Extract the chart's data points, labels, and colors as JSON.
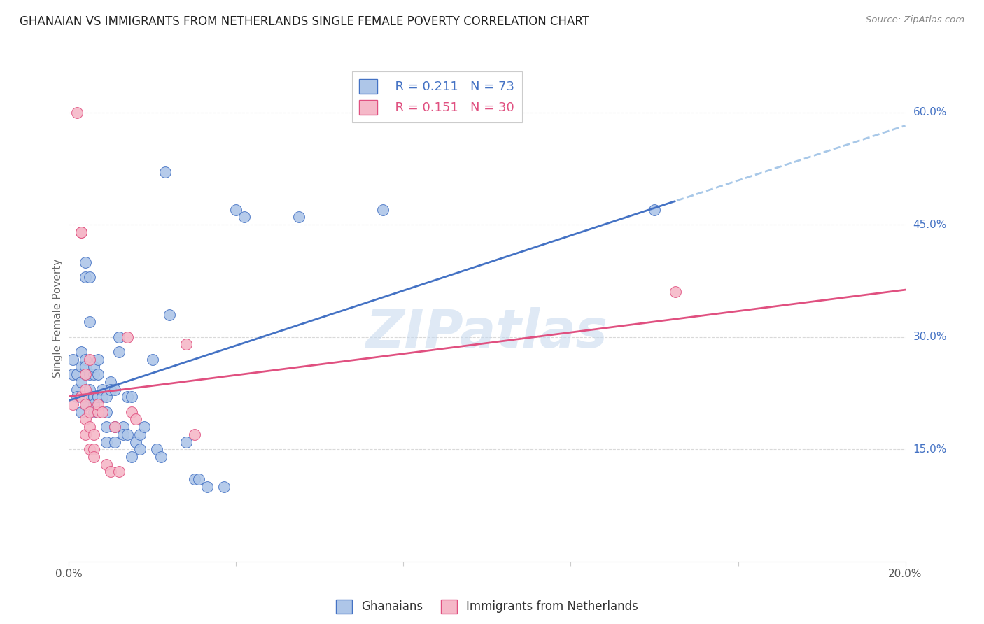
{
  "title": "GHANAIAN VS IMMIGRANTS FROM NETHERLANDS SINGLE FEMALE POVERTY CORRELATION CHART",
  "source": "Source: ZipAtlas.com",
  "ylabel": "Single Female Poverty",
  "ghanaian_R": 0.211,
  "ghanaian_N": 73,
  "netherlands_R": 0.151,
  "netherlands_N": 30,
  "ghanaian_color": "#aec6e8",
  "netherlands_color": "#f5b8c8",
  "ghanaian_line_color": "#4472c4",
  "netherlands_line_color": "#e05080",
  "trend_dash_color": "#a8c8e8",
  "watermark": "ZIPatlas",
  "xlim": [
    0.0,
    0.2
  ],
  "ylim": [
    0.0,
    0.65
  ],
  "yticks": [
    0.15,
    0.3,
    0.45,
    0.6
  ],
  "ytick_labels": [
    "15.0%",
    "30.0%",
    "45.0%",
    "60.0%"
  ],
  "xticks": [
    0.0,
    0.04,
    0.08,
    0.12,
    0.16,
    0.2
  ],
  "xtick_labels": [
    "0.0%",
    "",
    "",
    "",
    "",
    "20.0%"
  ],
  "ghanaian_x": [
    0.001,
    0.001,
    0.002,
    0.002,
    0.002,
    0.003,
    0.003,
    0.003,
    0.003,
    0.003,
    0.004,
    0.004,
    0.004,
    0.004,
    0.004,
    0.004,
    0.004,
    0.005,
    0.005,
    0.005,
    0.005,
    0.005,
    0.006,
    0.006,
    0.006,
    0.006,
    0.006,
    0.006,
    0.007,
    0.007,
    0.007,
    0.007,
    0.007,
    0.008,
    0.008,
    0.008,
    0.008,
    0.009,
    0.009,
    0.009,
    0.009,
    0.01,
    0.01,
    0.011,
    0.011,
    0.011,
    0.012,
    0.012,
    0.013,
    0.013,
    0.014,
    0.014,
    0.015,
    0.015,
    0.016,
    0.017,
    0.017,
    0.018,
    0.02,
    0.021,
    0.022,
    0.023,
    0.024,
    0.028,
    0.03,
    0.031,
    0.033,
    0.037,
    0.04,
    0.042,
    0.055,
    0.075,
    0.14
  ],
  "ghanaian_y": [
    0.25,
    0.27,
    0.23,
    0.25,
    0.22,
    0.26,
    0.28,
    0.24,
    0.22,
    0.2,
    0.25,
    0.27,
    0.4,
    0.38,
    0.26,
    0.22,
    0.21,
    0.38,
    0.32,
    0.22,
    0.25,
    0.23,
    0.25,
    0.22,
    0.26,
    0.22,
    0.2,
    0.21,
    0.27,
    0.22,
    0.22,
    0.2,
    0.25,
    0.22,
    0.22,
    0.2,
    0.23,
    0.22,
    0.2,
    0.18,
    0.16,
    0.24,
    0.23,
    0.18,
    0.16,
    0.23,
    0.28,
    0.3,
    0.18,
    0.17,
    0.17,
    0.22,
    0.22,
    0.14,
    0.16,
    0.15,
    0.17,
    0.18,
    0.27,
    0.15,
    0.14,
    0.52,
    0.33,
    0.16,
    0.11,
    0.11,
    0.1,
    0.1,
    0.47,
    0.46,
    0.46,
    0.47,
    0.47
  ],
  "netherlands_x": [
    0.001,
    0.002,
    0.003,
    0.003,
    0.003,
    0.004,
    0.004,
    0.004,
    0.004,
    0.004,
    0.005,
    0.005,
    0.005,
    0.005,
    0.006,
    0.006,
    0.006,
    0.007,
    0.007,
    0.008,
    0.009,
    0.01,
    0.011,
    0.012,
    0.014,
    0.015,
    0.016,
    0.028,
    0.03,
    0.145
  ],
  "netherlands_y": [
    0.21,
    0.6,
    0.44,
    0.44,
    0.22,
    0.25,
    0.23,
    0.21,
    0.19,
    0.17,
    0.15,
    0.27,
    0.2,
    0.18,
    0.15,
    0.14,
    0.17,
    0.2,
    0.21,
    0.2,
    0.13,
    0.12,
    0.18,
    0.12,
    0.3,
    0.2,
    0.19,
    0.29,
    0.17,
    0.36
  ]
}
